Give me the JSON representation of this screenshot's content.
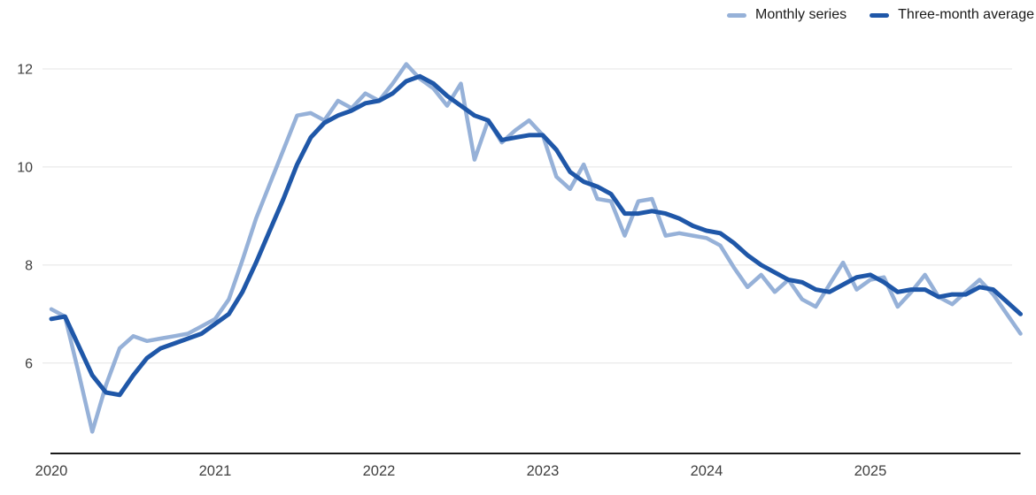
{
  "legend": {
    "items": [
      {
        "label": "Monthly series",
        "color": "#96b1d8"
      },
      {
        "label": "Three-month average",
        "color": "#1f57a8"
      }
    ]
  },
  "axes": {
    "y_tick_labels": [
      "12",
      "10",
      "8",
      "6"
    ],
    "x_tick_labels": [
      "2020",
      "2021",
      "2022",
      "2023",
      "2024",
      "2025"
    ],
    "grid_color": "#e4e4e4",
    "axis_line_color": "#1a1a1a",
    "tick_text_color": "#3f3f3f"
  },
  "chart_data": {
    "type": "line",
    "title": "",
    "xlabel": "",
    "ylabel": "",
    "x": [
      "2020-01",
      "2020-02",
      "2020-03",
      "2020-04",
      "2020-05",
      "2020-06",
      "2020-07",
      "2020-08",
      "2020-09",
      "2020-10",
      "2020-11",
      "2020-12",
      "2021-01",
      "2021-02",
      "2021-03",
      "2021-04",
      "2021-05",
      "2021-06",
      "2021-07",
      "2021-08",
      "2021-09",
      "2021-10",
      "2021-11",
      "2021-12",
      "2022-01",
      "2022-02",
      "2022-03",
      "2022-04",
      "2022-05",
      "2022-06",
      "2022-07",
      "2022-08",
      "2022-09",
      "2022-10",
      "2022-11",
      "2022-12",
      "2023-01",
      "2023-02",
      "2023-03",
      "2023-04",
      "2023-05",
      "2023-06",
      "2023-07",
      "2023-08",
      "2023-09",
      "2023-10",
      "2023-11",
      "2023-12",
      "2024-01",
      "2024-02",
      "2024-03",
      "2024-04",
      "2024-05",
      "2024-06",
      "2024-07",
      "2024-08",
      "2024-09",
      "2024-10",
      "2024-11",
      "2024-12",
      "2025-01",
      "2025-02",
      "2025-03",
      "2025-04",
      "2025-05",
      "2025-06",
      "2025-07",
      "2025-08",
      "2025-09",
      "2025-10",
      "2025-11",
      "2025-12"
    ],
    "series": [
      {
        "name": "Monthly series",
        "color": "#96b1d8",
        "values": [
          7.1,
          6.95,
          5.8,
          4.6,
          5.55,
          6.3,
          6.55,
          6.45,
          6.5,
          6.55,
          6.6,
          6.75,
          6.9,
          7.3,
          8.1,
          8.95,
          9.65,
          10.35,
          11.05,
          11.1,
          10.95,
          11.35,
          11.2,
          11.5,
          11.35,
          11.7,
          12.1,
          11.8,
          11.6,
          11.25,
          11.7,
          10.15,
          10.95,
          10.5,
          10.75,
          10.95,
          10.65,
          9.8,
          9.55,
          10.05,
          9.35,
          9.3,
          8.6,
          9.3,
          9.35,
          8.6,
          8.65,
          8.6,
          8.55,
          8.4,
          7.95,
          7.55,
          7.8,
          7.45,
          7.7,
          7.3,
          7.15,
          7.6,
          8.05,
          7.5,
          7.7,
          7.75,
          7.15,
          7.45,
          7.8,
          7.35,
          7.2,
          7.45,
          7.7,
          7.4,
          7.0,
          6.6
        ]
      },
      {
        "name": "Three-month average",
        "color": "#1f57a8",
        "values": [
          6.9,
          6.95,
          6.35,
          5.75,
          5.4,
          5.35,
          5.75,
          6.1,
          6.3,
          6.4,
          6.5,
          6.6,
          6.8,
          7.0,
          7.45,
          8.05,
          8.7,
          9.35,
          10.05,
          10.6,
          10.9,
          11.05,
          11.15,
          11.3,
          11.35,
          11.5,
          11.75,
          11.85,
          11.7,
          11.45,
          11.25,
          11.05,
          10.95,
          10.55,
          10.6,
          10.65,
          10.65,
          10.35,
          9.9,
          9.7,
          9.6,
          9.45,
          9.05,
          9.05,
          9.1,
          9.05,
          8.95,
          8.8,
          8.7,
          8.65,
          8.45,
          8.2,
          8.0,
          7.85,
          7.7,
          7.65,
          7.5,
          7.45,
          7.6,
          7.75,
          7.8,
          7.65,
          7.45,
          7.5,
          7.5,
          7.35,
          7.4,
          7.4,
          7.55,
          7.5,
          7.25,
          7.0
        ]
      }
    ],
    "yticks": [
      6,
      8,
      10,
      12
    ],
    "ylim": [
      4.3,
      12.4
    ],
    "xticks": [
      {
        "label": "2020",
        "month_index": 0
      },
      {
        "label": "2021",
        "month_index": 12
      },
      {
        "label": "2022",
        "month_index": 24
      },
      {
        "label": "2023",
        "month_index": 36
      },
      {
        "label": "2024",
        "month_index": 48
      },
      {
        "label": "2025",
        "month_index": 60
      }
    ],
    "grid": true,
    "legend_position": "top-right"
  }
}
